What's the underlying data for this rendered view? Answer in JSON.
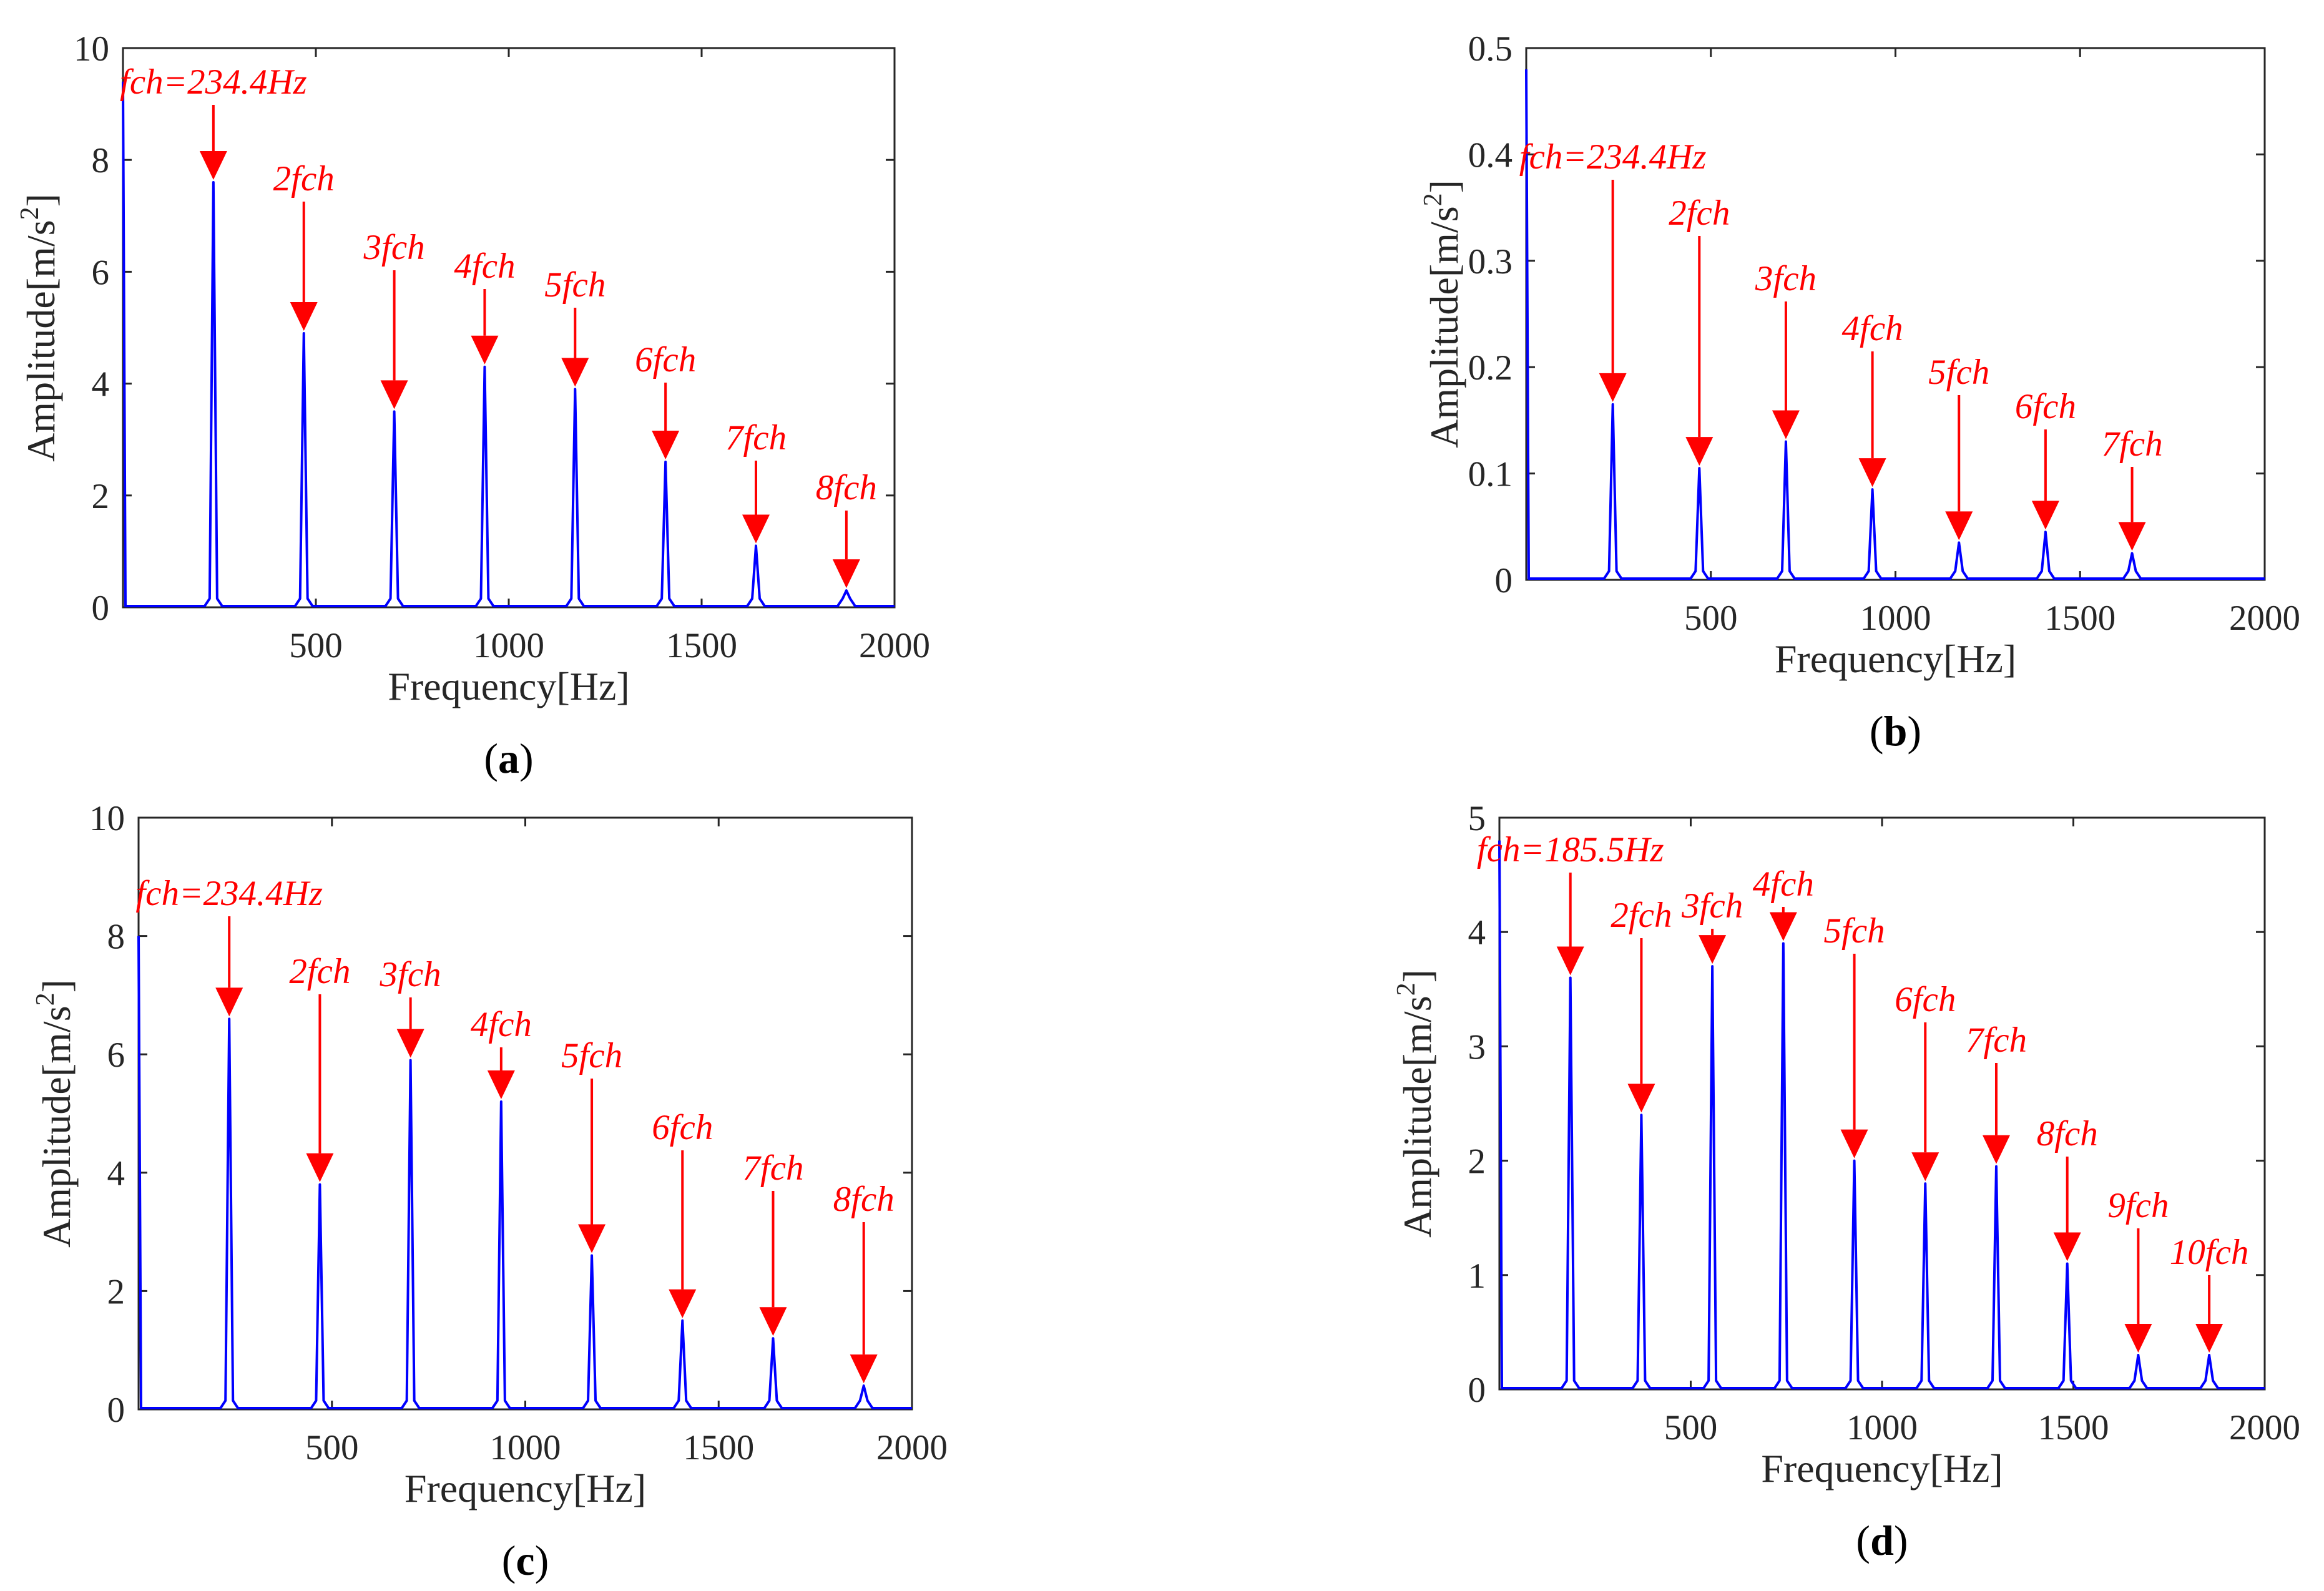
{
  "figure": {
    "line_color": "#0000ff",
    "arrow_color": "#ff0000"
  },
  "chart_data": [
    {
      "id": "a",
      "caption_open": "(",
      "caption_letter": "a",
      "caption_close": ")",
      "type": "line",
      "title": "",
      "xlabel": "Frequency[Hz]",
      "ylabel_main": "Amplitude[m/s",
      "ylabel_sup": "2",
      "ylabel_end": "]",
      "xlim": [
        0,
        2000
      ],
      "ylim": [
        0,
        10
      ],
      "xticks": [
        500,
        1000,
        1500,
        2000
      ],
      "xtick_labels": [
        "500",
        "1000",
        "1500",
        "2000"
      ],
      "yticks": [
        0,
        2,
        4,
        6,
        8,
        10
      ],
      "ytick_labels": [
        "0",
        "2",
        "4",
        "6",
        "8",
        "10"
      ],
      "start_amp": 9.4,
      "peaks": [
        {
          "f": 234.4,
          "amp": 7.6,
          "label": "fch=234.4Hz"
        },
        {
          "f": 468.8,
          "amp": 4.9,
          "label": "2fch"
        },
        {
          "f": 703.2,
          "amp": 3.5,
          "label": "3fch"
        },
        {
          "f": 937.6,
          "amp": 4.3,
          "label": "4fch"
        },
        {
          "f": 1172.0,
          "amp": 3.9,
          "label": "5fch"
        },
        {
          "f": 1406.4,
          "amp": 2.6,
          "label": "6fch"
        },
        {
          "f": 1640.8,
          "amp": 1.1,
          "label": "7fch"
        },
        {
          "f": 1875.2,
          "amp": 0.3,
          "label": "8fch"
        }
      ]
    },
    {
      "id": "b",
      "caption_open": "(",
      "caption_letter": "b",
      "caption_close": ")",
      "type": "line",
      "title": "",
      "xlabel": "Frequency[Hz]",
      "ylabel_main": "Amplitude[m/s",
      "ylabel_sup": "2",
      "ylabel_end": "]",
      "xlim": [
        0,
        2000
      ],
      "ylim": [
        0,
        0.5
      ],
      "xticks": [
        500,
        1000,
        1500,
        2000
      ],
      "xtick_labels": [
        "500",
        "1000",
        "1500",
        "2000"
      ],
      "yticks": [
        0,
        0.1,
        0.2,
        0.3,
        0.4,
        0.5
      ],
      "ytick_labels": [
        "0",
        "0.1",
        "0.2",
        "0.3",
        "0.4",
        "0.5"
      ],
      "start_amp": 0.48,
      "peaks": [
        {
          "f": 234.4,
          "amp": 0.165,
          "label": "fch=234.4Hz"
        },
        {
          "f": 468.8,
          "amp": 0.105,
          "label": "2fch"
        },
        {
          "f": 703.2,
          "amp": 0.13,
          "label": "3fch"
        },
        {
          "f": 937.6,
          "amp": 0.085,
          "label": "4fch"
        },
        {
          "f": 1172.0,
          "amp": 0.035,
          "label": "5fch"
        },
        {
          "f": 1406.4,
          "amp": 0.045,
          "label": "6fch"
        },
        {
          "f": 1640.8,
          "amp": 0.025,
          "label": "7fch"
        }
      ]
    },
    {
      "id": "c",
      "caption_open": "(",
      "caption_letter": "c",
      "caption_close": ")",
      "type": "line",
      "title": "",
      "xlabel": "Frequency[Hz]",
      "ylabel_main": "Amplitude[m/s",
      "ylabel_sup": "2",
      "ylabel_end": "]",
      "xlim": [
        0,
        2000
      ],
      "ylim": [
        0,
        10
      ],
      "xticks": [
        500,
        1000,
        1500,
        2000
      ],
      "xtick_labels": [
        "500",
        "1000",
        "1500",
        "2000"
      ],
      "yticks": [
        0,
        2,
        4,
        6,
        8,
        10
      ],
      "ytick_labels": [
        "0",
        "2",
        "4",
        "6",
        "8",
        "10"
      ],
      "start_amp": 8.0,
      "peaks": [
        {
          "f": 234.4,
          "amp": 6.6,
          "label": "fch=234.4Hz"
        },
        {
          "f": 468.8,
          "amp": 3.8,
          "label": "2fch"
        },
        {
          "f": 703.2,
          "amp": 5.9,
          "label": "3fch"
        },
        {
          "f": 937.6,
          "amp": 5.2,
          "label": "4fch"
        },
        {
          "f": 1172.0,
          "amp": 2.6,
          "label": "5fch"
        },
        {
          "f": 1406.4,
          "amp": 1.5,
          "label": "6fch"
        },
        {
          "f": 1640.8,
          "amp": 1.2,
          "label": "7fch"
        },
        {
          "f": 1875.2,
          "amp": 0.4,
          "label": "8fch"
        }
      ]
    },
    {
      "id": "d",
      "caption_open": "(",
      "caption_letter": "d",
      "caption_close": ")",
      "type": "line",
      "title": "",
      "xlabel": "Frequency[Hz]",
      "ylabel_main": "Amplitude[m/s",
      "ylabel_sup": "2",
      "ylabel_end": "]",
      "xlim": [
        0,
        2000
      ],
      "ylim": [
        0,
        5
      ],
      "xticks": [
        500,
        1000,
        1500,
        2000
      ],
      "xtick_labels": [
        "500",
        "1000",
        "1500",
        "2000"
      ],
      "yticks": [
        0,
        1,
        2,
        3,
        4,
        5
      ],
      "ytick_labels": [
        "0",
        "1",
        "2",
        "3",
        "4",
        "5"
      ],
      "start_amp": 4.8,
      "peaks": [
        {
          "f": 185.5,
          "amp": 3.6,
          "label": "fch=185.5Hz"
        },
        {
          "f": 371.0,
          "amp": 2.4,
          "label": "2fch"
        },
        {
          "f": 556.5,
          "amp": 3.7,
          "label": "3fch"
        },
        {
          "f": 742.0,
          "amp": 3.9,
          "label": "4fch"
        },
        {
          "f": 927.5,
          "amp": 2.0,
          "label": "5fch"
        },
        {
          "f": 1113.0,
          "amp": 1.8,
          "label": "6fch"
        },
        {
          "f": 1298.5,
          "amp": 1.95,
          "label": "7fch"
        },
        {
          "f": 1484.0,
          "amp": 1.1,
          "label": "8fch"
        },
        {
          "f": 1669.5,
          "amp": 0.3,
          "label": "9fch"
        },
        {
          "f": 1855.0,
          "amp": 0.3,
          "label": "10fch"
        }
      ]
    }
  ]
}
